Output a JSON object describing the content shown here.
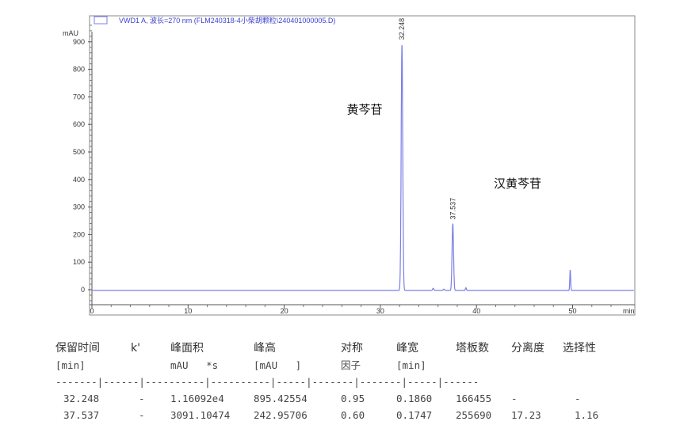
{
  "chart_data": {
    "type": "line",
    "title": "VWD1 A, 波长=270 nm (FLM240318-4小柴胡颗粒\\240401000005.D)",
    "ylabel": "mAU",
    "xlabel": "min",
    "xlim": [
      0,
      56.4
    ],
    "ylim": [
      -50,
      980
    ],
    "xticks": [
      0,
      10,
      20,
      30,
      40,
      50
    ],
    "yticks": [
      0,
      100,
      200,
      300,
      400,
      500,
      600,
      700,
      800,
      900
    ],
    "grid": false,
    "line_color": "#7b7fe8",
    "peaks": [
      {
        "rt": 32.248,
        "height": 895.4,
        "label": "32.248",
        "width": 0.19
      },
      {
        "rt": 35.5,
        "height": 8,
        "width": 0.15
      },
      {
        "rt": 36.6,
        "height": 5,
        "width": 0.15
      },
      {
        "rt": 37.537,
        "height": 243.0,
        "label": "37.537",
        "width": 0.18
      },
      {
        "rt": 38.9,
        "height": 10,
        "width": 0.12
      },
      {
        "rt": 49.75,
        "height": 75,
        "width": 0.1
      }
    ],
    "baseline": -3,
    "annotations": [
      {
        "text": "黄芩苷",
        "rt": 26.5,
        "y": 640
      },
      {
        "text": "汉黄芩苷",
        "rt": 41.8,
        "y": 370
      }
    ]
  },
  "table": {
    "headers": [
      [
        "保留时间",
        "k'",
        "峰面积",
        "峰高",
        "对称",
        "峰宽",
        "塔板数",
        "分离度",
        "选择性"
      ],
      [
        "[min]",
        "",
        "mAU   *s",
        "[mAU   ]",
        "因子",
        "[min]",
        "",
        "",
        ""
      ]
    ],
    "separator": "-------|------|----------|----------|-----|-------|-------|-----|------",
    "rows": [
      [
        "32.248",
        "-",
        "1.16092e4",
        "895.42554",
        "0.95",
        "0.1860",
        "166455",
        "-",
        "-"
      ],
      [
        "37.537",
        "-",
        "3091.10474",
        "242.95706",
        "0.60",
        "0.1747",
        "255690",
        "17.23",
        "1.16"
      ]
    ]
  }
}
